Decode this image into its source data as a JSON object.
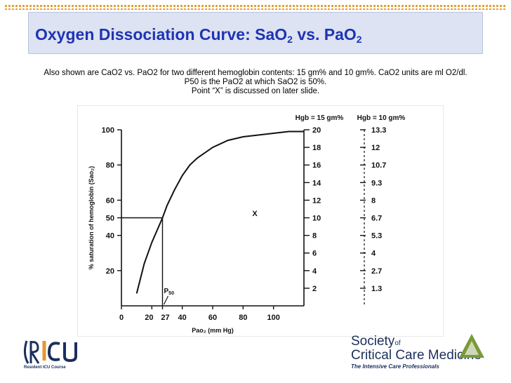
{
  "slide": {
    "title_main": "Oxygen Dissociation Curve:  SaO",
    "title_sub1": "2",
    "title_mid": " vs. PaO",
    "title_sub2": "2",
    "caption_line1": "Also shown are CaO2 vs. PaO2 for two different hemoglobin contents:  15 gm% and 10 gm%.  CaO2 units are ml O2/dl.",
    "caption_line2": "P50 is the PaO2 at which SaO2 is 50%.",
    "caption_line3": "Point “X” is discussed on later slide."
  },
  "logos": {
    "left_text": "Resident ICU Course",
    "sccm_line1": "Society",
    "sccm_of": "of",
    "sccm_line2": "Critical Care Medicine",
    "sccm_tagline": "The Intensive Care Professionals"
  },
  "chart_data": {
    "type": "line",
    "xlabel": "Pao₂ (mm Hg)",
    "ylabel": "% saturation of hemoglobin (Sao₂)",
    "xlim": [
      0,
      120
    ],
    "ylim": [
      0,
      100
    ],
    "x_ticks": [
      0,
      20,
      27,
      40,
      60,
      80,
      100
    ],
    "x_tick_labels": [
      "0",
      "20",
      "27",
      "40",
      "60",
      "80",
      "100"
    ],
    "y_ticks": [
      20,
      40,
      50,
      60,
      80,
      100
    ],
    "y_tick_labels": [
      "20",
      "40",
      "50",
      "60",
      "80",
      "100"
    ],
    "curve": {
      "x": [
        10,
        15,
        20,
        25,
        27,
        30,
        35,
        40,
        45,
        50,
        60,
        70,
        80,
        90,
        100,
        110,
        120
      ],
      "y": [
        7,
        24,
        36,
        46,
        50,
        57,
        66,
        74,
        80,
        84,
        90,
        94,
        96,
        97,
        98,
        99,
        99
      ]
    },
    "p50": {
      "x": 27,
      "y": 50,
      "label": "P",
      "label_sub": "50"
    },
    "point_x_label": "X",
    "right_axes": [
      {
        "header": "Hgb = 15 gm%",
        "ticks": [
          2,
          4,
          6,
          8,
          10,
          12,
          14,
          16,
          18,
          20
        ],
        "labels": [
          "2",
          "4",
          "6",
          "8",
          "10",
          "12",
          "14",
          "16",
          "18",
          "20"
        ]
      },
      {
        "header": "Hgb = 10 gm%",
        "ticks": [
          1.3,
          2.7,
          4,
          5.3,
          6.7,
          8,
          9.3,
          10.7,
          12,
          13.3
        ],
        "labels": [
          "1.3",
          "2.7",
          "4",
          "5.3",
          "6.7",
          "8",
          "9.3",
          "10.7",
          "12",
          "13.3"
        ]
      }
    ],
    "colors": {
      "curve": "#111111",
      "title": "#1f34b3",
      "title_box": "#dde3f2",
      "border_dots": "#e39a2d"
    }
  }
}
